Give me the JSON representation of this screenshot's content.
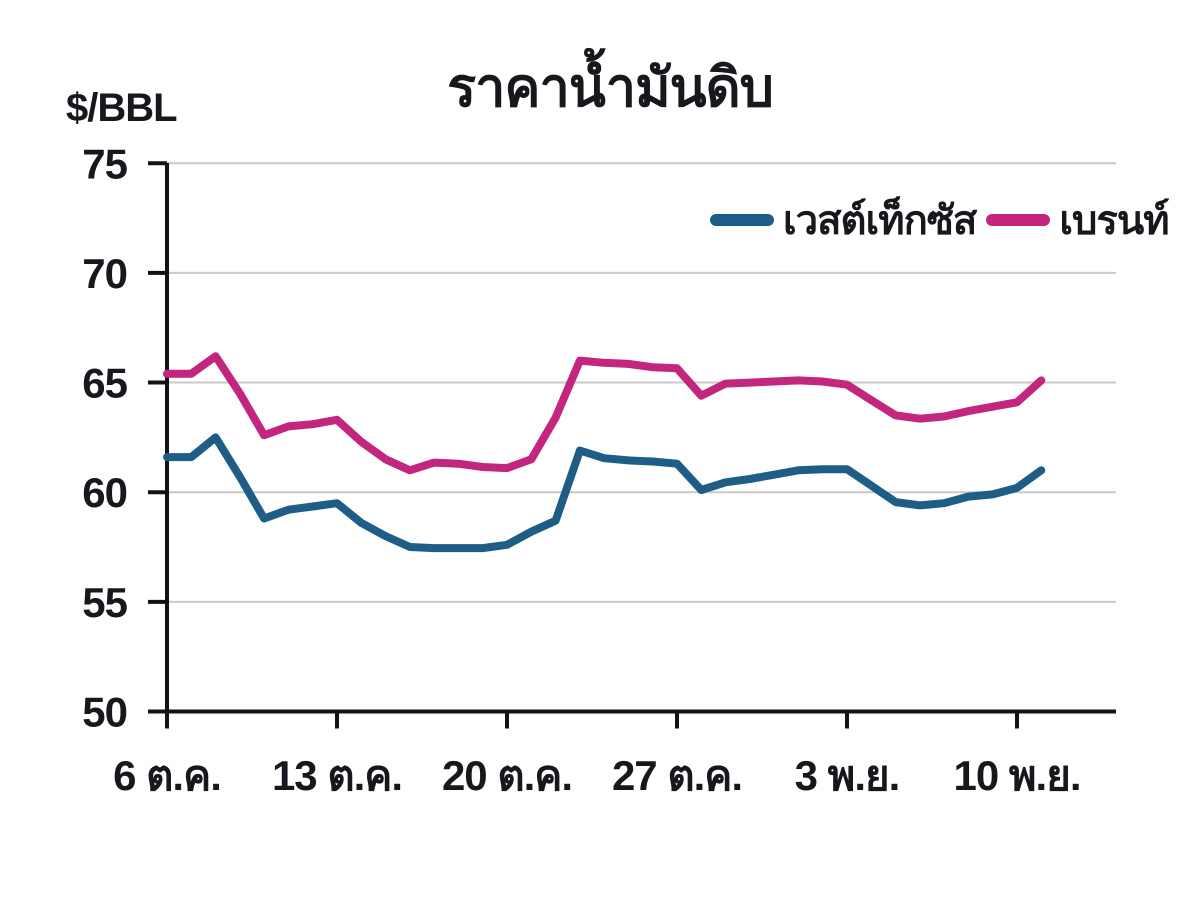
{
  "page": {
    "background": "#ffffff"
  },
  "colors": {
    "axis": "#131313",
    "grid": "#c9c9c9",
    "text": "#17171d"
  },
  "chart_data": {
    "type": "line",
    "title": "ราคาน้ำมันดิบ",
    "ylabel": "$/BBL",
    "xlabel": "",
    "ylim": [
      50,
      75
    ],
    "yticks": [
      50,
      55,
      60,
      65,
      70,
      75
    ],
    "x_range": [
      0,
      36
    ],
    "x_tick_positions": [
      0,
      7,
      14,
      21,
      28,
      35
    ],
    "x_tick_labels": [
      "6 ต.ค.",
      "13 ต.ค.",
      "20 ต.ค.",
      "27 ต.ค.",
      "3 พ.ย.",
      "10 พ.ย."
    ],
    "grid": true,
    "legend_position": "top-right",
    "series": [
      {
        "key": "wti",
        "name": "เวสต์เท็กซัส",
        "color": "#1E5E86",
        "x": [
          0,
          1,
          2,
          3,
          4,
          5,
          6,
          7,
          8,
          9,
          10,
          11,
          12,
          13,
          14,
          15,
          16,
          17,
          18,
          19,
          20,
          21,
          22,
          23,
          24,
          25,
          26,
          27,
          28,
          29,
          30,
          31,
          32,
          33,
          34,
          35,
          36
        ],
        "values": [
          61.6,
          61.6,
          62.5,
          60.7,
          58.8,
          59.2,
          59.35,
          59.5,
          58.6,
          58.0,
          57.5,
          57.45,
          57.45,
          57.45,
          57.6,
          58.2,
          58.7,
          61.9,
          61.55,
          61.45,
          61.4,
          61.3,
          60.1,
          60.45,
          60.6,
          60.8,
          61.0,
          61.05,
          61.05,
          60.3,
          59.55,
          59.4,
          59.5,
          59.8,
          59.9,
          60.2,
          61.0
        ]
      },
      {
        "key": "brent",
        "name": "เบรนท์",
        "color": "#C2267E",
        "x": [
          0,
          1,
          2,
          3,
          4,
          5,
          6,
          7,
          8,
          9,
          10,
          11,
          12,
          13,
          14,
          15,
          16,
          17,
          18,
          19,
          20,
          21,
          22,
          23,
          24,
          25,
          26,
          27,
          28,
          29,
          30,
          31,
          32,
          33,
          34,
          35,
          36
        ],
        "values": [
          65.4,
          65.4,
          66.2,
          64.5,
          62.6,
          63.0,
          63.1,
          63.3,
          62.3,
          61.5,
          61.0,
          61.35,
          61.3,
          61.15,
          61.1,
          61.5,
          63.4,
          66.0,
          65.9,
          65.85,
          65.7,
          65.65,
          64.4,
          64.95,
          65.0,
          65.05,
          65.1,
          65.05,
          64.9,
          64.2,
          63.5,
          63.35,
          63.45,
          63.7,
          63.9,
          64.1,
          65.1
        ]
      }
    ]
  }
}
